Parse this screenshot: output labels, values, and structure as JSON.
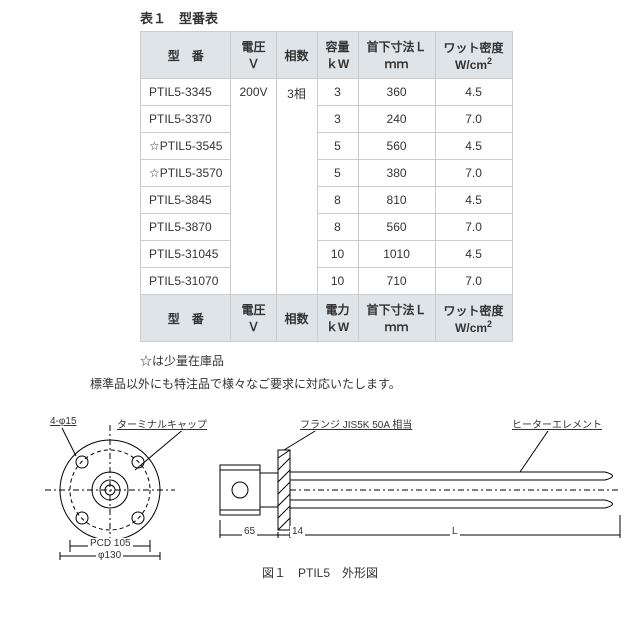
{
  "title": "表１　型番表",
  "headers": {
    "model": "型　番",
    "voltage": "電圧\nＶ",
    "phase": "相数",
    "capacity": "容量\nｋW",
    "length": "首下寸法Ｌ\nｍｍ",
    "wattdensity": "ワット密度\nW/cm"
  },
  "headers2": {
    "model": "型　番",
    "voltage": "電圧\nＶ",
    "phase": "相数",
    "capacity": "電力\nｋW",
    "length": "首下寸法Ｌ\nｍｍ",
    "wattdensity": "ワット密度\nW/cm"
  },
  "voltage": "200V",
  "phase": "3相",
  "rows": [
    {
      "model": "PTIL5-3345",
      "cap": "3",
      "len": "360",
      "wd": "4.5"
    },
    {
      "model": "PTIL5-3370",
      "cap": "3",
      "len": "240",
      "wd": "7.0"
    },
    {
      "model": "☆PTIL5-3545",
      "cap": "5",
      "len": "560",
      "wd": "4.5"
    },
    {
      "model": "☆PTIL5-3570",
      "cap": "5",
      "len": "380",
      "wd": "7.0"
    },
    {
      "model": "PTIL5-3845",
      "cap": "8",
      "len": "810",
      "wd": "4.5"
    },
    {
      "model": "PTIL5-3870",
      "cap": "8",
      "len": "560",
      "wd": "7.0"
    },
    {
      "model": "PTIL5-31045",
      "cap": "10",
      "len": "1010",
      "wd": "4.5"
    },
    {
      "model": "PTIL5-31070",
      "cap": "10",
      "len": "710",
      "wd": "7.0"
    }
  ],
  "note1": "☆は少量在庫品",
  "note2": "標準品以外にも特注品で様々なご要求に対応いたします。",
  "diagram": {
    "labels": {
      "holes": "4-φ15",
      "terminal_cap": "ターミナルキャップ",
      "flange": "フランジ JIS5K 50A 相当",
      "heater": "ヒーターエレメント",
      "pcd": "PCD 105",
      "dia": "φ130",
      "t65": "65",
      "t14": "14",
      "L": "L"
    },
    "caption": "図１　PTIL5　外形図",
    "colors": {
      "stroke": "#000000",
      "hatch": "#000000"
    }
  }
}
